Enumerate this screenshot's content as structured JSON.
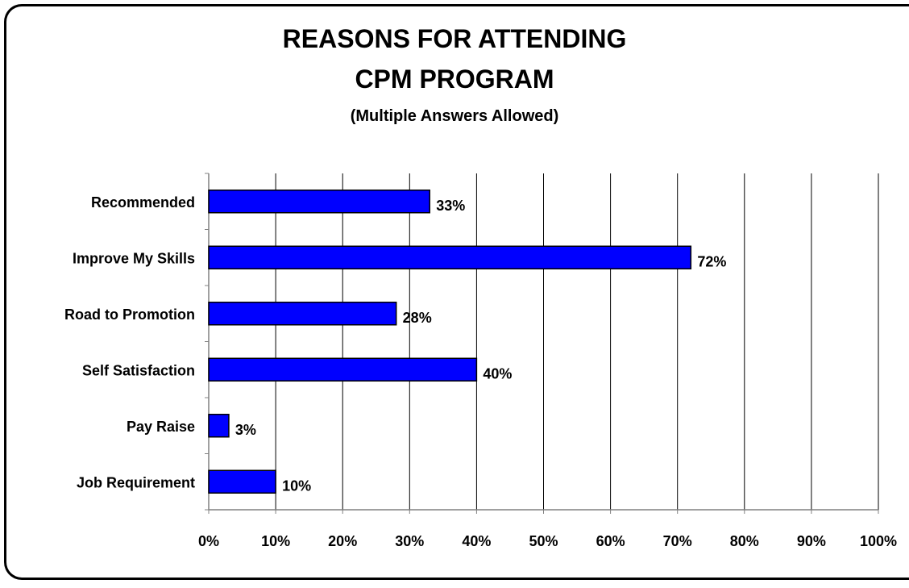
{
  "colors": {
    "bar": "#0000ff",
    "bar_stroke": "#000000",
    "grid": "#000000",
    "axis": "#808080"
  },
  "chart_data": {
    "type": "bar",
    "orientation": "horizontal",
    "title": "REASONS FOR ATTENDING",
    "title_line2": "CPM PROGRAM",
    "subtitle": "(Multiple Answers Allowed)",
    "categories": [
      "Recommended",
      "Improve My Skills",
      "Road to Promotion",
      "Self Satisfaction",
      "Pay Raise",
      "Job Requirement"
    ],
    "values": [
      33,
      72,
      28,
      40,
      3,
      10
    ],
    "data_labels": [
      "33%",
      "72%",
      "28%",
      "40%",
      "3%",
      "10%"
    ],
    "xlim": [
      0,
      100
    ],
    "xticks": [
      0,
      10,
      20,
      30,
      40,
      50,
      60,
      70,
      80,
      90,
      100
    ],
    "xtick_labels": [
      "0%",
      "10%",
      "20%",
      "30%",
      "40%",
      "50%",
      "60%",
      "70%",
      "80%",
      "90%",
      "100%"
    ],
    "xlabel": "",
    "ylabel": "",
    "grid": true,
    "legend": "none"
  }
}
